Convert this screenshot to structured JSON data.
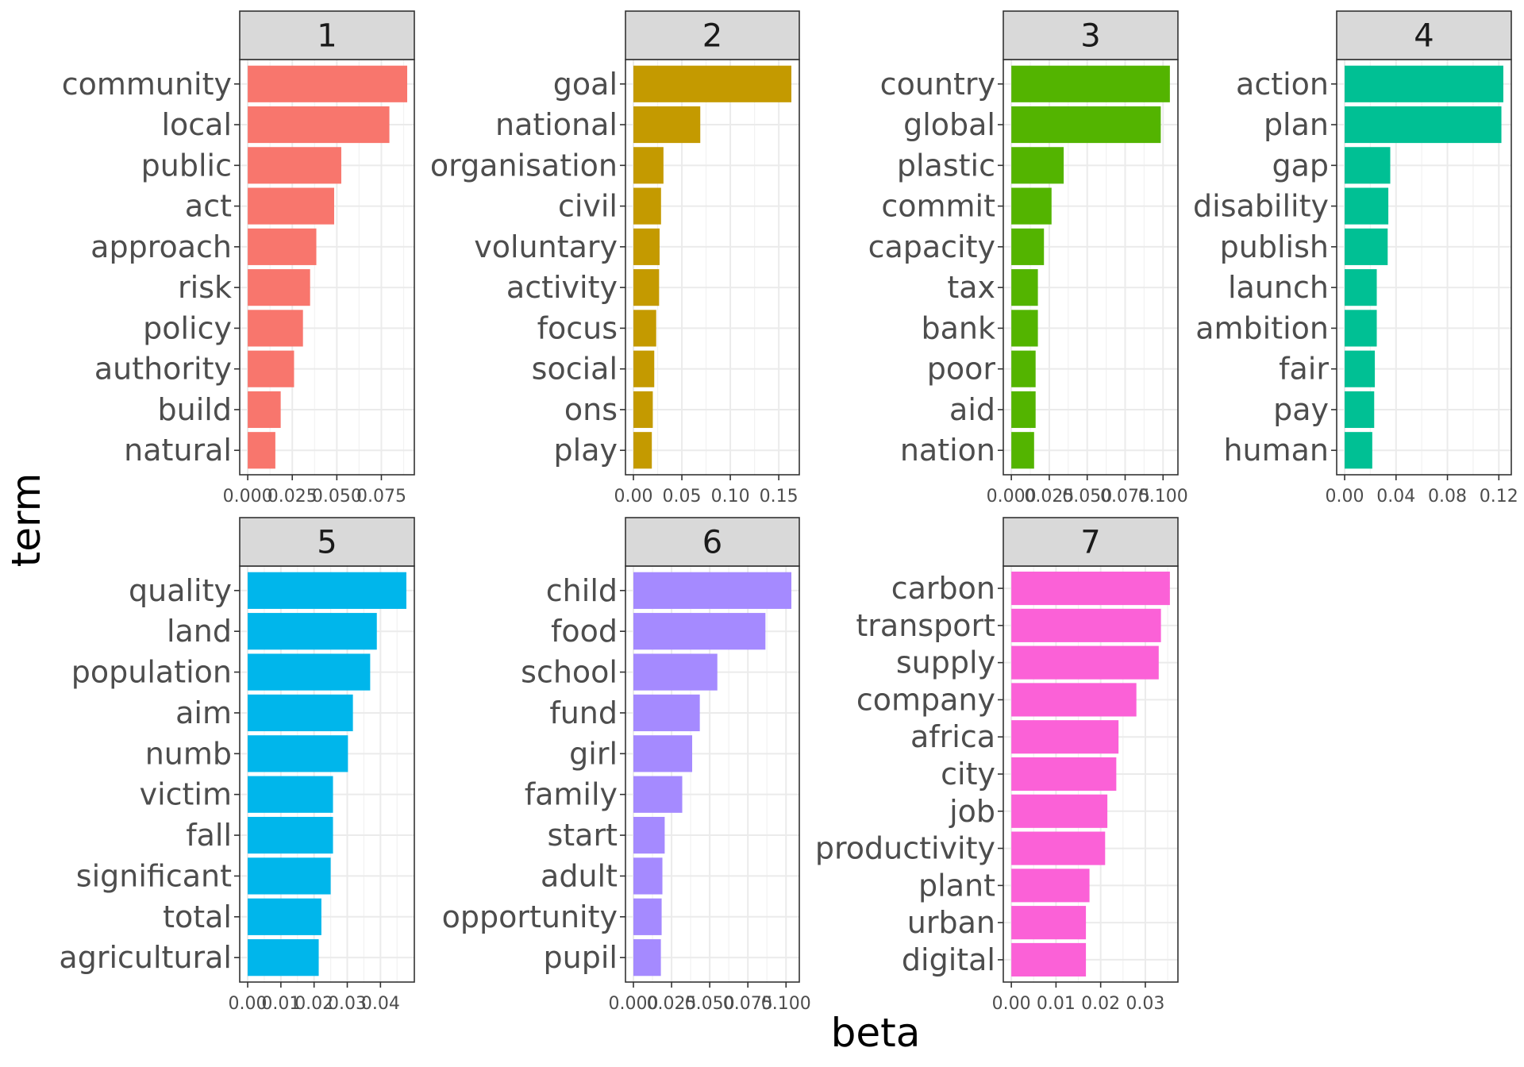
{
  "chart_data": {
    "type": "bar",
    "orientation": "horizontal",
    "facet_layout": "4 columns, 2 rows, free scales",
    "xlabel": "beta",
    "ylabel": "term",
    "grid": true,
    "legend": "none",
    "panels": [
      {
        "panel": "1",
        "color": "#F8766D",
        "categories": [
          "community",
          "local",
          "public",
          "act",
          "approach",
          "risk",
          "policy",
          "authority",
          "build",
          "natural"
        ],
        "values": [
          0.0895,
          0.0795,
          0.0525,
          0.0485,
          0.0385,
          0.035,
          0.031,
          0.026,
          0.0185,
          0.0155
        ],
        "xlim": [
          -0.0045,
          0.0935
        ],
        "xticks": [
          0,
          0.025,
          0.05,
          0.075
        ],
        "xtick_labels": [
          "0.000",
          "0.025",
          "0.050",
          "0.075"
        ]
      },
      {
        "panel": "2",
        "color": "#C49A00",
        "categories": [
          "goal",
          "national",
          "organisation",
          "civil",
          "voluntary",
          "activity",
          "focus",
          "social",
          "ons",
          "play"
        ],
        "values": [
          0.163,
          0.069,
          0.031,
          0.0285,
          0.027,
          0.0265,
          0.0235,
          0.0215,
          0.02,
          0.019
        ],
        "xlim": [
          -0.0082,
          0.1712
        ],
        "xticks": [
          0,
          0.05,
          0.1,
          0.15
        ],
        "xtick_labels": [
          "0.00",
          "0.05",
          "0.10",
          "0.15"
        ]
      },
      {
        "panel": "3",
        "color": "#53B400",
        "categories": [
          "country",
          "global",
          "plastic",
          "commit",
          "capacity",
          "tax",
          "bank",
          "poor",
          "aid",
          "nation"
        ],
        "values": [
          0.1045,
          0.0985,
          0.0345,
          0.0265,
          0.0215,
          0.0175,
          0.0175,
          0.016,
          0.016,
          0.015
        ],
        "xlim": [
          -0.0053,
          0.1098
        ],
        "xticks": [
          0,
          0.025,
          0.05,
          0.075,
          0.1
        ],
        "xtick_labels": [
          "0.000",
          "0.025",
          "0.050",
          "0.075",
          "0.100"
        ]
      },
      {
        "panel": "4",
        "color": "#00C094",
        "categories": [
          "action",
          "plan",
          "gap",
          "disability",
          "publish",
          "launch",
          "ambition",
          "fair",
          "pay",
          "human"
        ],
        "values": [
          0.1235,
          0.122,
          0.0355,
          0.034,
          0.0335,
          0.025,
          0.025,
          0.0235,
          0.023,
          0.0215
        ],
        "xlim": [
          -0.0062,
          0.1297
        ],
        "xticks": [
          0,
          0.04,
          0.08,
          0.12
        ],
        "xtick_labels": [
          "0.00",
          "0.04",
          "0.08",
          "0.12"
        ]
      },
      {
        "panel": "5",
        "color": "#00B6EB",
        "categories": [
          "quality",
          "land",
          "population",
          "aim",
          "numb",
          "victim",
          "fall",
          "significant",
          "total",
          "agricultural"
        ],
        "values": [
          0.0478,
          0.0389,
          0.0369,
          0.0317,
          0.0302,
          0.0257,
          0.0257,
          0.025,
          0.0222,
          0.0214
        ],
        "xlim": [
          -0.0024,
          0.0502
        ],
        "xticks": [
          0,
          0.01,
          0.02,
          0.03,
          0.04
        ],
        "xtick_labels": [
          "0.00",
          "0.01",
          "0.02",
          "0.03",
          "0.04"
        ]
      },
      {
        "panel": "6",
        "color": "#A58AFF",
        "categories": [
          "child",
          "food",
          "school",
          "fund",
          "girl",
          "family",
          "start",
          "adult",
          "opportunity",
          "pupil"
        ],
        "values": [
          0.1035,
          0.0865,
          0.055,
          0.0435,
          0.0385,
          0.032,
          0.0205,
          0.019,
          0.0185,
          0.018
        ],
        "xlim": [
          -0.0052,
          0.1087
        ],
        "xticks": [
          0,
          0.025,
          0.05,
          0.075,
          0.1
        ],
        "xtick_labels": [
          "0.000",
          "0.025",
          "0.050",
          "0.075",
          "0.100"
        ]
      },
      {
        "panel": "7",
        "color": "#FB61D7",
        "categories": [
          "carbon",
          "transport",
          "supply",
          "company",
          "africa",
          "city",
          "job",
          "productivity",
          "plant",
          "urban",
          "digital"
        ],
        "values": [
          0.0355,
          0.0335,
          0.033,
          0.028,
          0.024,
          0.0235,
          0.0215,
          0.021,
          0.0175,
          0.0167,
          0.0167
        ],
        "xlim": [
          -0.0018,
          0.0373
        ],
        "xticks": [
          0,
          0.01,
          0.02,
          0.03
        ],
        "xtick_labels": [
          "0.00",
          "0.01",
          "0.02",
          "0.03"
        ]
      }
    ]
  }
}
